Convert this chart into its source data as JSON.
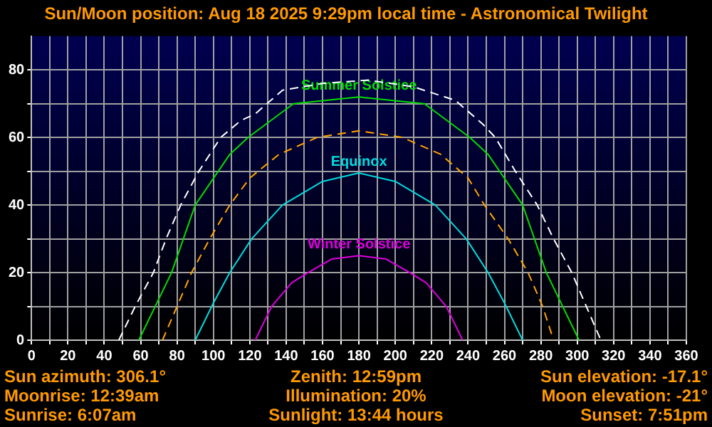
{
  "chart_data": {
    "type": "line",
    "title": "Sun/Moon position: Aug 18 2025 9:29pm local time - Astronomical Twilight",
    "xlim": [
      0,
      360
    ],
    "xticks": [
      0,
      {
        "value": 10,
        "label": null
      },
      20,
      {
        "value": 30,
        "label": null
      },
      40,
      {
        "value": 50,
        "label": null
      },
      60,
      {
        "value": 70,
        "label": null
      },
      80,
      {
        "value": 90,
        "label": null
      },
      100,
      {
        "value": 110,
        "label": null
      },
      120,
      {
        "value": 130,
        "label": null
      },
      140,
      {
        "value": 150,
        "label": null
      },
      160,
      {
        "value": 170,
        "label": null
      },
      180,
      {
        "value": 190,
        "label": null
      },
      200,
      {
        "value": 210,
        "label": null
      },
      220,
      {
        "value": 230,
        "label": null
      },
      240,
      {
        "value": 250,
        "label": null
      },
      260,
      {
        "value": 270,
        "label": null
      },
      280,
      {
        "value": 290,
        "label": null
      },
      300,
      {
        "value": 310,
        "label": null
      },
      320,
      {
        "value": 330,
        "label": null
      },
      340,
      {
        "value": 350,
        "label": null
      },
      360
    ],
    "ylim": [
      0,
      90
    ],
    "yticks": [
      0,
      {
        "value": 10,
        "label": null
      },
      20,
      {
        "value": 30,
        "label": null
      },
      40,
      {
        "value": 50,
        "label": null
      },
      60,
      {
        "value": 70,
        "label": null
      },
      80
    ],
    "grid": true,
    "legend": false,
    "marker": "none",
    "series": [
      {
        "color": "#ffffff",
        "line_style": "dashed",
        "x": [
          48,
          57,
          67,
          74,
          82,
          92,
          104,
          115,
          123,
          138,
          160,
          185,
          210,
          233,
          248,
          255,
          266,
          278,
          287,
          297,
          305,
          313
        ],
        "values": [
          0,
          10,
          20,
          30,
          40,
          50,
          60,
          65,
          67,
          74,
          76,
          77,
          75,
          71,
          64,
          60,
          50,
          40,
          30,
          20,
          10,
          0
        ]
      },
      {
        "name": "Summer Solstice",
        "color": "#00dd00",
        "line_style": "solid",
        "x": [
          59,
          77,
          90,
          109,
          119,
          144,
          180,
          216,
          241,
          251,
          270,
          283,
          301
        ],
        "values": [
          0,
          20,
          40,
          55,
          60,
          70,
          72,
          70,
          60,
          55,
          40,
          20,
          0
        ]
      },
      {
        "color": "#ffa500",
        "line_style": "dashed",
        "x": [
          72,
          80,
          88,
          98,
          109,
          120,
          136,
          157,
          180,
          204,
          225,
          240,
          249,
          262,
          273,
          281,
          287
        ],
        "values": [
          0,
          10,
          20,
          30,
          40,
          48,
          55,
          60,
          62,
          60,
          55,
          48,
          40,
          30,
          20,
          10,
          0
        ]
      },
      {
        "name": "Equinox",
        "color": "#00dddd",
        "line_style": "solid",
        "x": [
          90,
          100,
          109,
          121,
          138,
          160,
          180,
          200,
          222,
          239,
          251,
          260,
          270
        ],
        "values": [
          0,
          11,
          20,
          30,
          40,
          47,
          49.5,
          47,
          40,
          30,
          20,
          11,
          0
        ]
      },
      {
        "name": "Winter Solstice",
        "color": "#dd00dd",
        "line_style": "solid",
        "x": [
          123,
          132,
          143,
          152,
          165,
          180,
          195,
          208,
          217,
          228,
          237
        ],
        "values": [
          0,
          10,
          17,
          20,
          24,
          25,
          24,
          20,
          17,
          10,
          0
        ]
      }
    ],
    "annotations": [
      "Sun azimuth: 306.1°",
      "Zenith: 12:59pm",
      "Sun elevation: -17.1°",
      "Moonrise: 12:39am",
      "Illumination: 20%",
      "Moon elevation: -21°",
      "Sunrise: 6:07am",
      "Sunlight: 13:44 hours",
      "Sunset: 7:51pm"
    ]
  }
}
